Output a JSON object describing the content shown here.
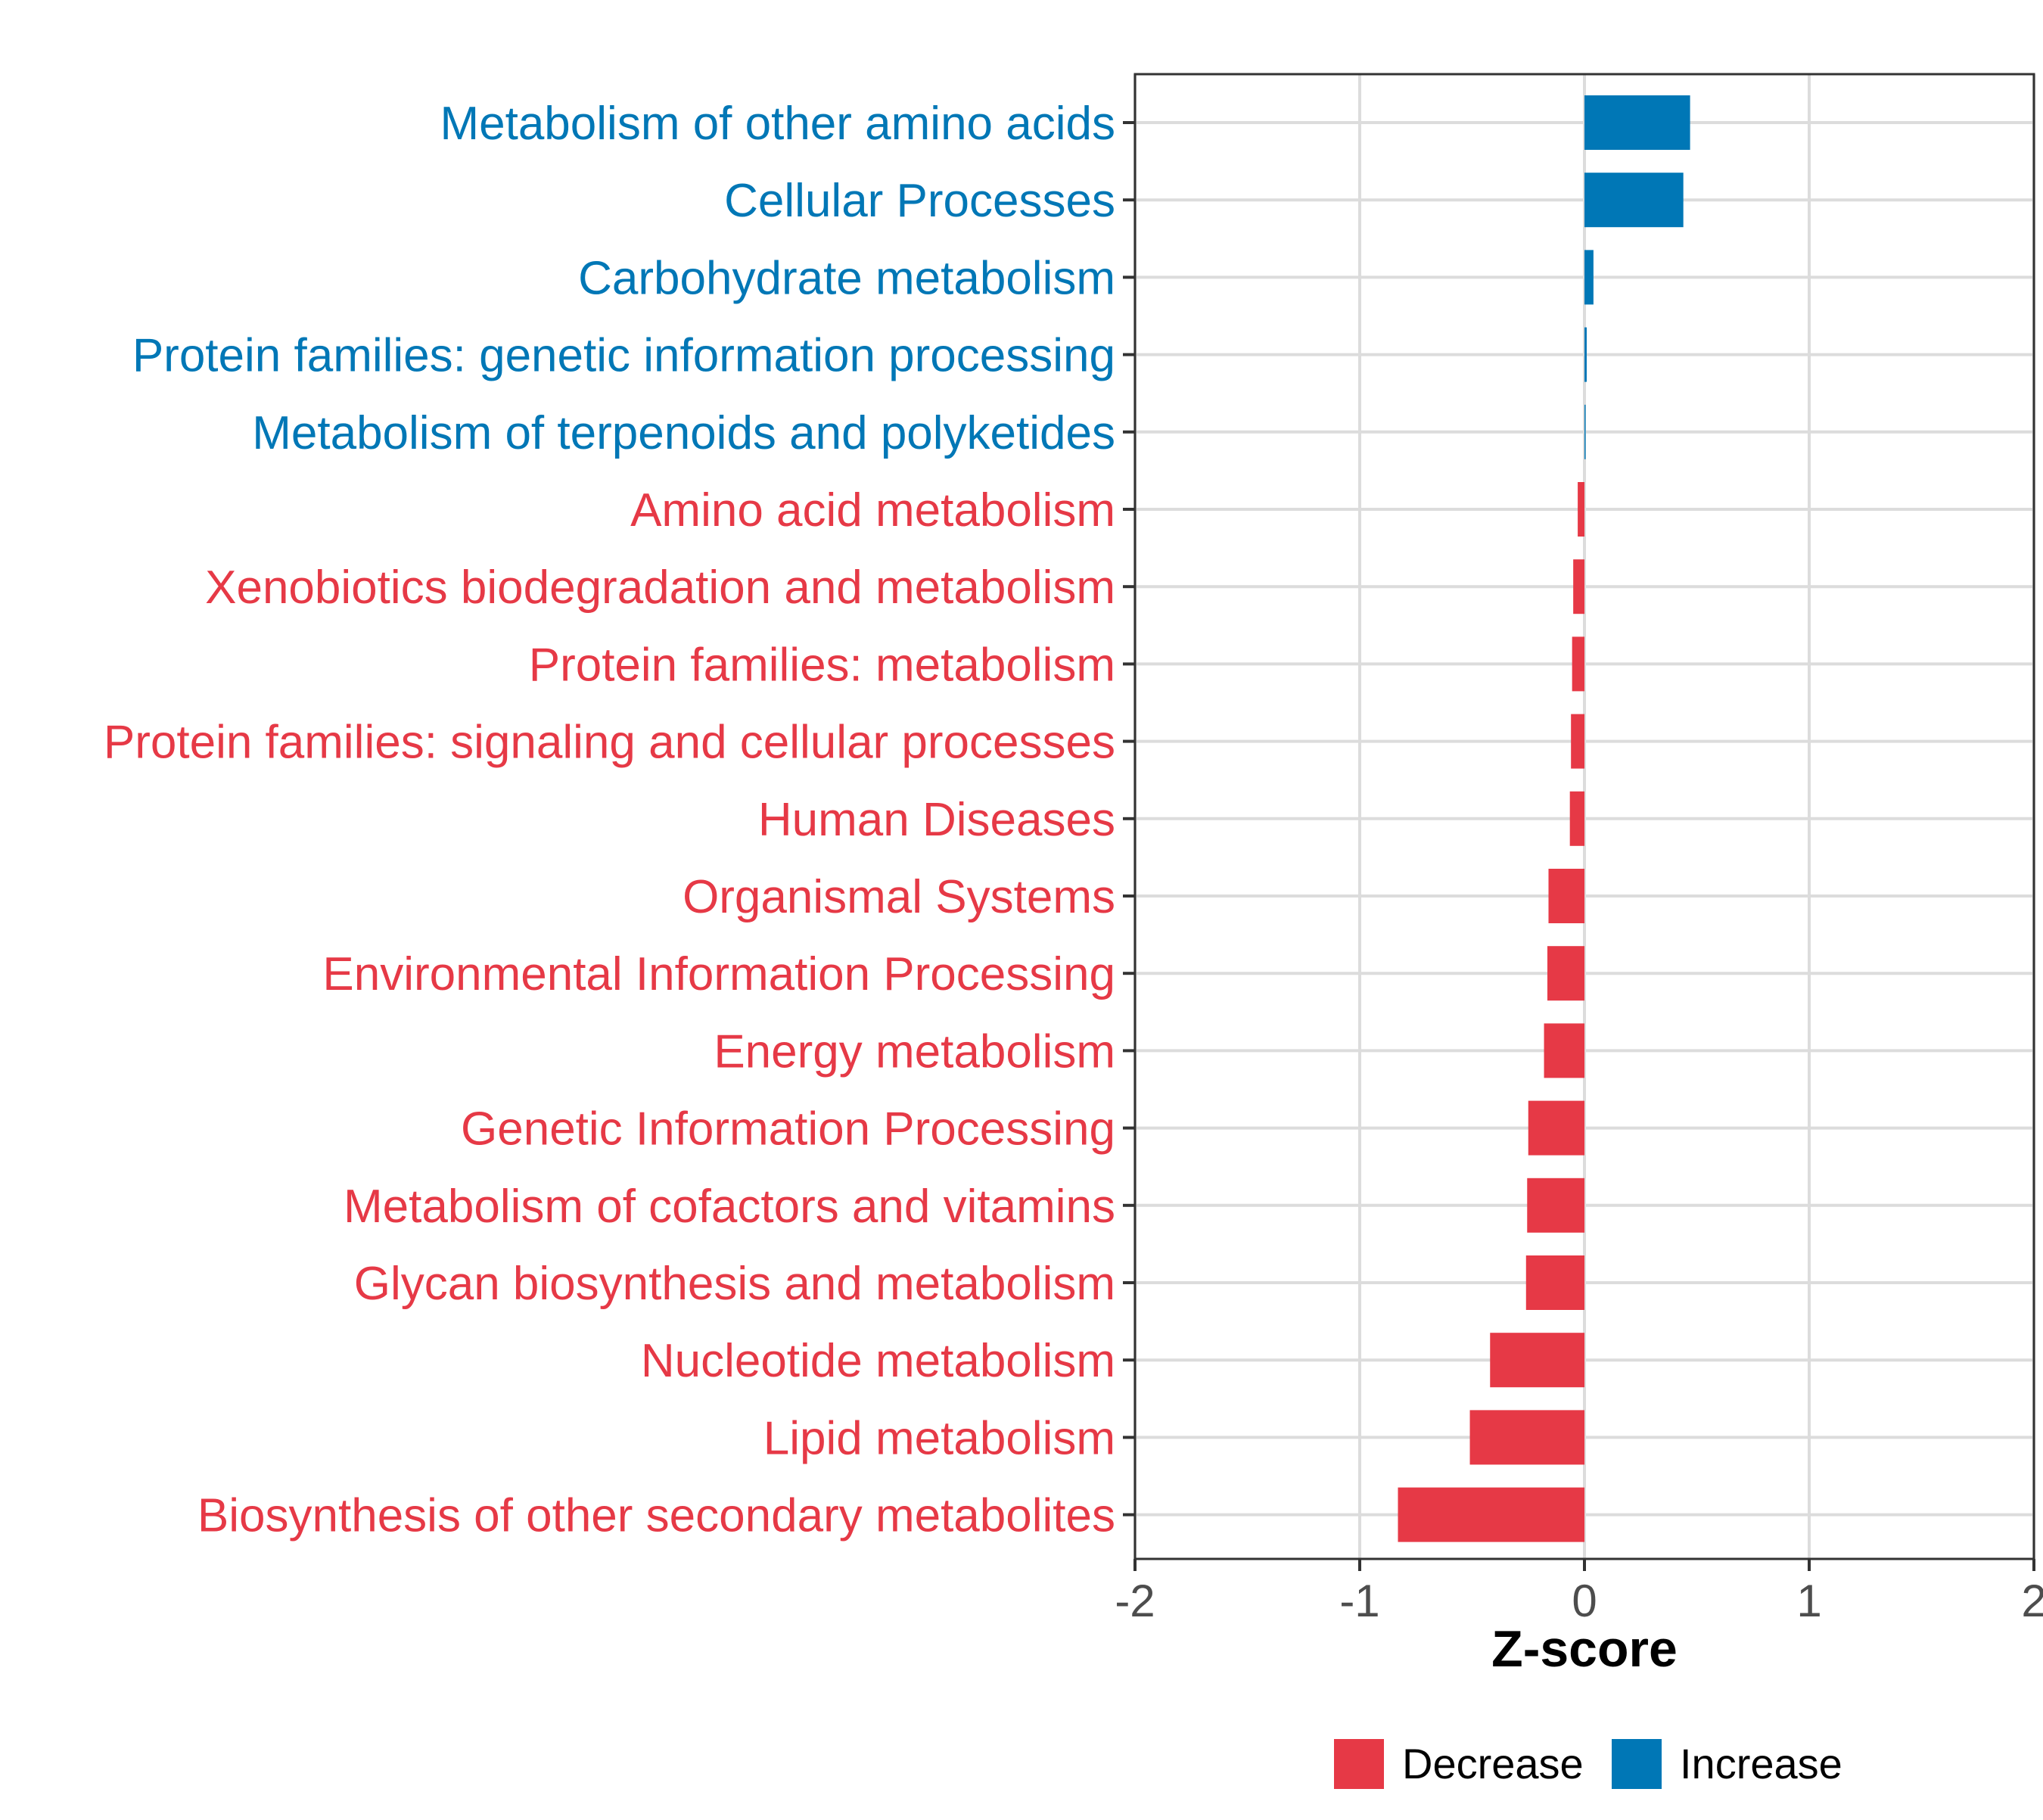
{
  "chart_data": {
    "type": "bar",
    "orientation": "horizontal",
    "xlabel": "Z-score",
    "ylabel": "",
    "xlim": [
      -2,
      2
    ],
    "xticks": [
      "-2",
      "-1",
      "0",
      "1",
      "2"
    ],
    "xtick_values": [
      -2,
      -1,
      0,
      1,
      2
    ],
    "grid": true,
    "legend_position": "bottom",
    "colors": {
      "Decrease": "#e63946",
      "Increase": "#0077b6"
    },
    "legend": [
      {
        "label": "Decrease",
        "color": "#e63946"
      },
      {
        "label": "Increase",
        "color": "#0077b6"
      }
    ],
    "categories": [
      "Metabolism of other amino acids",
      "Cellular Processes",
      "Carbohydrate metabolism",
      "Protein families: genetic information processing",
      "Metabolism of terpenoids and polyketides",
      "Amino acid metabolism",
      "Xenobiotics biodegradation and metabolism",
      "Protein families: metabolism",
      "Protein families: signaling and cellular processes",
      "Human Diseases",
      "Organismal Systems",
      "Environmental Information Processing",
      "Energy metabolism",
      "Genetic Information Processing",
      "Metabolism of cofactors and vitamins",
      "Glycan biosynthesis and metabolism",
      "Nucleotide metabolism",
      "Lipid metabolism",
      "Biosynthesis of other secondary metabolites"
    ],
    "values": [
      0.47,
      0.44,
      0.04,
      0.01,
      0.005,
      -0.03,
      -0.05,
      -0.055,
      -0.06,
      -0.065,
      -0.16,
      -0.165,
      -0.18,
      -0.25,
      -0.255,
      -0.26,
      -0.42,
      -0.51,
      -0.83
    ],
    "groups": [
      "Increase",
      "Increase",
      "Increase",
      "Increase",
      "Increase",
      "Decrease",
      "Decrease",
      "Decrease",
      "Decrease",
      "Decrease",
      "Decrease",
      "Decrease",
      "Decrease",
      "Decrease",
      "Decrease",
      "Decrease",
      "Decrease",
      "Decrease",
      "Decrease"
    ]
  }
}
